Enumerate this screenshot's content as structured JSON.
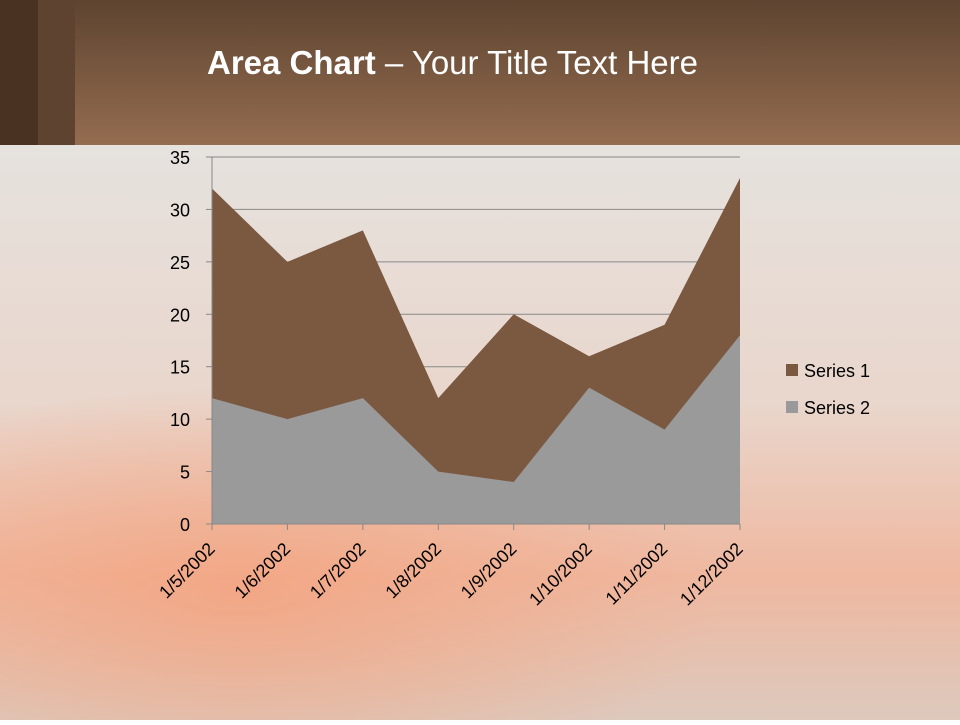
{
  "chart_data": {
    "type": "area",
    "title_bold": "Area Chart",
    "title_rest": "– Your Title Text Here",
    "categories": [
      "1/5/2002",
      "1/6/2002",
      "1/7/2002",
      "1/8/2002",
      "1/9/2002",
      "1/10/2002",
      "1/11/2002",
      "1/12/2002"
    ],
    "series": [
      {
        "name": "Series 1",
        "color": "#7b5840",
        "values": [
          32,
          25,
          28,
          12,
          20,
          16,
          19,
          33
        ]
      },
      {
        "name": "Series 2",
        "color": "#9a9a9a",
        "values": [
          12,
          10,
          12,
          5,
          4,
          13,
          9,
          18
        ]
      }
    ],
    "ylim": [
      0,
      35
    ],
    "yticks": [
      0,
      5,
      10,
      15,
      20,
      25,
      30,
      35
    ],
    "grid": true,
    "legend": "right"
  }
}
